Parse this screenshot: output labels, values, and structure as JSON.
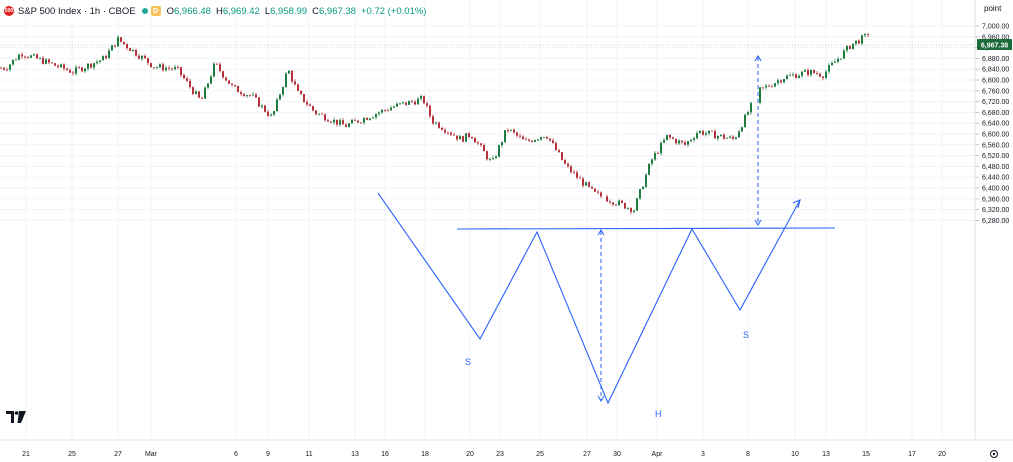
{
  "header": {
    "symbol_badge": "500",
    "title": "S&P 500 Index · 1h · CBOE",
    "d_badge": "D",
    "ohlc": [
      {
        "label": "O",
        "value": "6,966.48"
      },
      {
        "label": "H",
        "value": "6,969.42"
      },
      {
        "label": "L",
        "value": "6,958.99"
      },
      {
        "label": "C",
        "value": "6,967.38"
      }
    ],
    "change": "+0.72 (+0.01%)"
  },
  "price_axis": {
    "unit": "point",
    "ticks": [
      "7,000.00",
      "6,960.00",
      "6,920.00",
      "6,880.00",
      "6,840.00",
      "6,800.00",
      "6,760.00",
      "6,720.00",
      "6,680.00",
      "6,640.00",
      "6,600.00",
      "6,560.00",
      "6,520.00",
      "6,480.00",
      "6,440.00",
      "6,400.00",
      "6,360.00",
      "6,320.00",
      "6,280.00"
    ],
    "last_price_label": "6,967.38",
    "last_price": 6967.38
  },
  "time_axis": {
    "ticks": [
      "21",
      "25",
      "27",
      "Mar",
      "6",
      "9",
      "11",
      "13",
      "16",
      "18",
      "20",
      "23",
      "25",
      "27",
      "30",
      "Apr",
      "3",
      "8",
      "10",
      "13",
      "15",
      "17",
      "20"
    ]
  },
  "pattern": {
    "left_shoulder_label": "S",
    "head_label": "H",
    "right_shoulder_label": "S",
    "neckline": 6625
  },
  "colors": {
    "up": "#26a69a",
    "up_body": "#1e7d3e",
    "down": "#b5323a",
    "pattern": "#2962ff",
    "price_tag": "#1e6b3a"
  },
  "chart_data": {
    "type": "candlestick",
    "symbol": "S&P 500 Index",
    "interval": "1h",
    "ylim": [
      6265,
      7025
    ],
    "close_path": [
      {
        "date": "Feb 20",
        "close": 6845
      },
      {
        "date": "Feb 21",
        "close": 6900
      },
      {
        "date": "Feb 24",
        "close": 6830
      },
      {
        "date": "Feb 25",
        "close": 6880
      },
      {
        "date": "Feb 26",
        "close": 6950
      },
      {
        "date": "Feb 27",
        "close": 6850
      },
      {
        "date": "Mar 2",
        "close": 6840
      },
      {
        "date": "Mar 3",
        "close": 6720
      },
      {
        "date": "Mar 4",
        "close": 6860
      },
      {
        "date": "Mar 5",
        "close": 6770
      },
      {
        "date": "Mar 6",
        "close": 6740
      },
      {
        "date": "Mar 9",
        "close": 6660
      },
      {
        "date": "Mar 10",
        "close": 6840
      },
      {
        "date": "Mar 11",
        "close": 6750
      },
      {
        "date": "Mar 12",
        "close": 6680
      },
      {
        "date": "Mar 13",
        "close": 6630
      },
      {
        "date": "Mar 16",
        "close": 6700
      },
      {
        "date": "Mar 17",
        "close": 6730
      },
      {
        "date": "Mar 18",
        "close": 6650
      },
      {
        "date": "Mar 19",
        "close": 6580
      },
      {
        "date": "Mar 20",
        "close": 6600
      },
      {
        "date": "Mar 23",
        "close": 6490
      },
      {
        "date": "Mar 24",
        "close": 6620
      },
      {
        "date": "Mar 25",
        "close": 6570
      },
      {
        "date": "Mar 26",
        "close": 6600
      },
      {
        "date": "Mar 27",
        "close": 6480
      },
      {
        "date": "Mar 30",
        "close": 6380
      },
      {
        "date": "Mar 31",
        "close": 6320
      },
      {
        "date": "Apr 1",
        "close": 6500
      },
      {
        "date": "Apr 2",
        "close": 6590
      },
      {
        "date": "Apr 3",
        "close": 6560
      },
      {
        "date": "Apr 6",
        "close": 6610
      },
      {
        "date": "Apr 7",
        "close": 6580
      },
      {
        "date": "Apr 8",
        "close": 6760
      },
      {
        "date": "Apr 9",
        "close": 6810
      },
      {
        "date": "Apr 10",
        "close": 6830
      },
      {
        "date": "Apr 13",
        "close": 6820
      },
      {
        "date": "Apr 14",
        "close": 6930
      },
      {
        "date": "Apr 15",
        "close": 6967.38
      }
    ]
  }
}
